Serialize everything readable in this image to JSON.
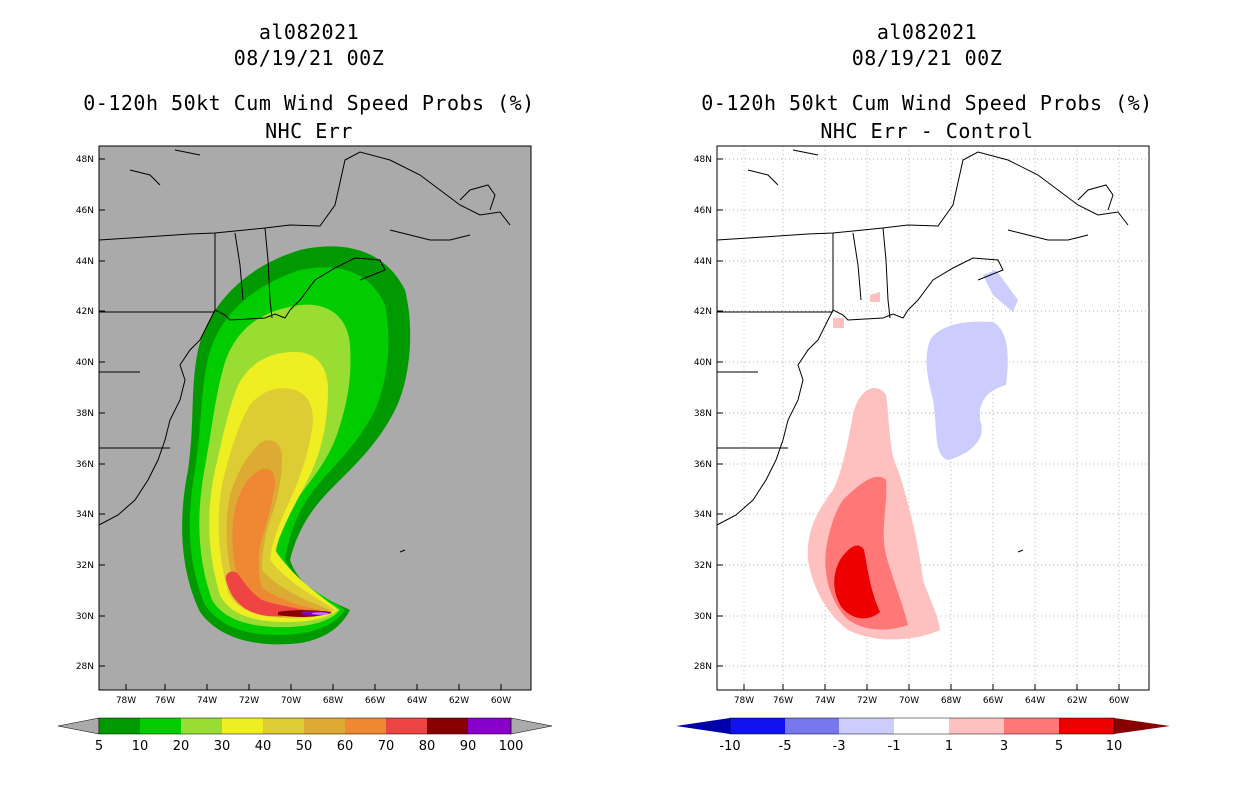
{
  "left": {
    "storm_id": "al082021",
    "datetime": "08/19/21 00Z",
    "product": "0-120h 50kt Cum Wind Speed Probs (%)",
    "subtitle": "NHC Err",
    "lat_labels": [
      "48N",
      "46N",
      "44N",
      "42N",
      "40N",
      "38N",
      "36N",
      "34N",
      "32N",
      "30N",
      "28N"
    ],
    "lon_labels": [
      "78W",
      "76W",
      "74W",
      "72W",
      "70W",
      "68W",
      "66W",
      "64W",
      "62W",
      "60W"
    ],
    "colorbar": {
      "labels": [
        "5",
        "10",
        "20",
        "30",
        "40",
        "50",
        "60",
        "70",
        "80",
        "90",
        "100"
      ],
      "colors": [
        "#009900",
        "#00cc00",
        "#99dd33",
        "#eeee22",
        "#ddcc33",
        "#ddaa33",
        "#ee8833",
        "#ee4444",
        "#880000",
        "#8800cc"
      ]
    },
    "contour_colors": [
      "#009900",
      "#00cc00",
      "#99dd33",
      "#eeee22",
      "#ddcc33",
      "#ddaa33",
      "#ee8833",
      "#ee4444",
      "#880000",
      "#8800cc"
    ]
  },
  "right": {
    "storm_id": "al082021",
    "datetime": "08/19/21 00Z",
    "product": "0-120h 50kt Cum Wind Speed Probs (%)",
    "subtitle": "NHC Err - Control",
    "lat_labels": [
      "48N",
      "46N",
      "44N",
      "42N",
      "40N",
      "38N",
      "36N",
      "34N",
      "32N",
      "30N",
      "28N"
    ],
    "lon_labels": [
      "78W",
      "76W",
      "74W",
      "72W",
      "70W",
      "68W",
      "66W",
      "64W",
      "62W",
      "60W"
    ],
    "colorbar": {
      "labels": [
        "-10",
        "-5",
        "-3",
        "-1",
        "1",
        "3",
        "5",
        "10"
      ],
      "colors": [
        "#0000cc",
        "#1111ee",
        "#7777ee",
        "#ccccff",
        "#ffffff",
        "#ffc0c0",
        "#ff7777",
        "#ee0000",
        "#880000"
      ]
    }
  },
  "colors": {
    "land_bg": "#aaaaaa",
    "ocean_bg": "#ffffff",
    "coast": "#000000"
  }
}
